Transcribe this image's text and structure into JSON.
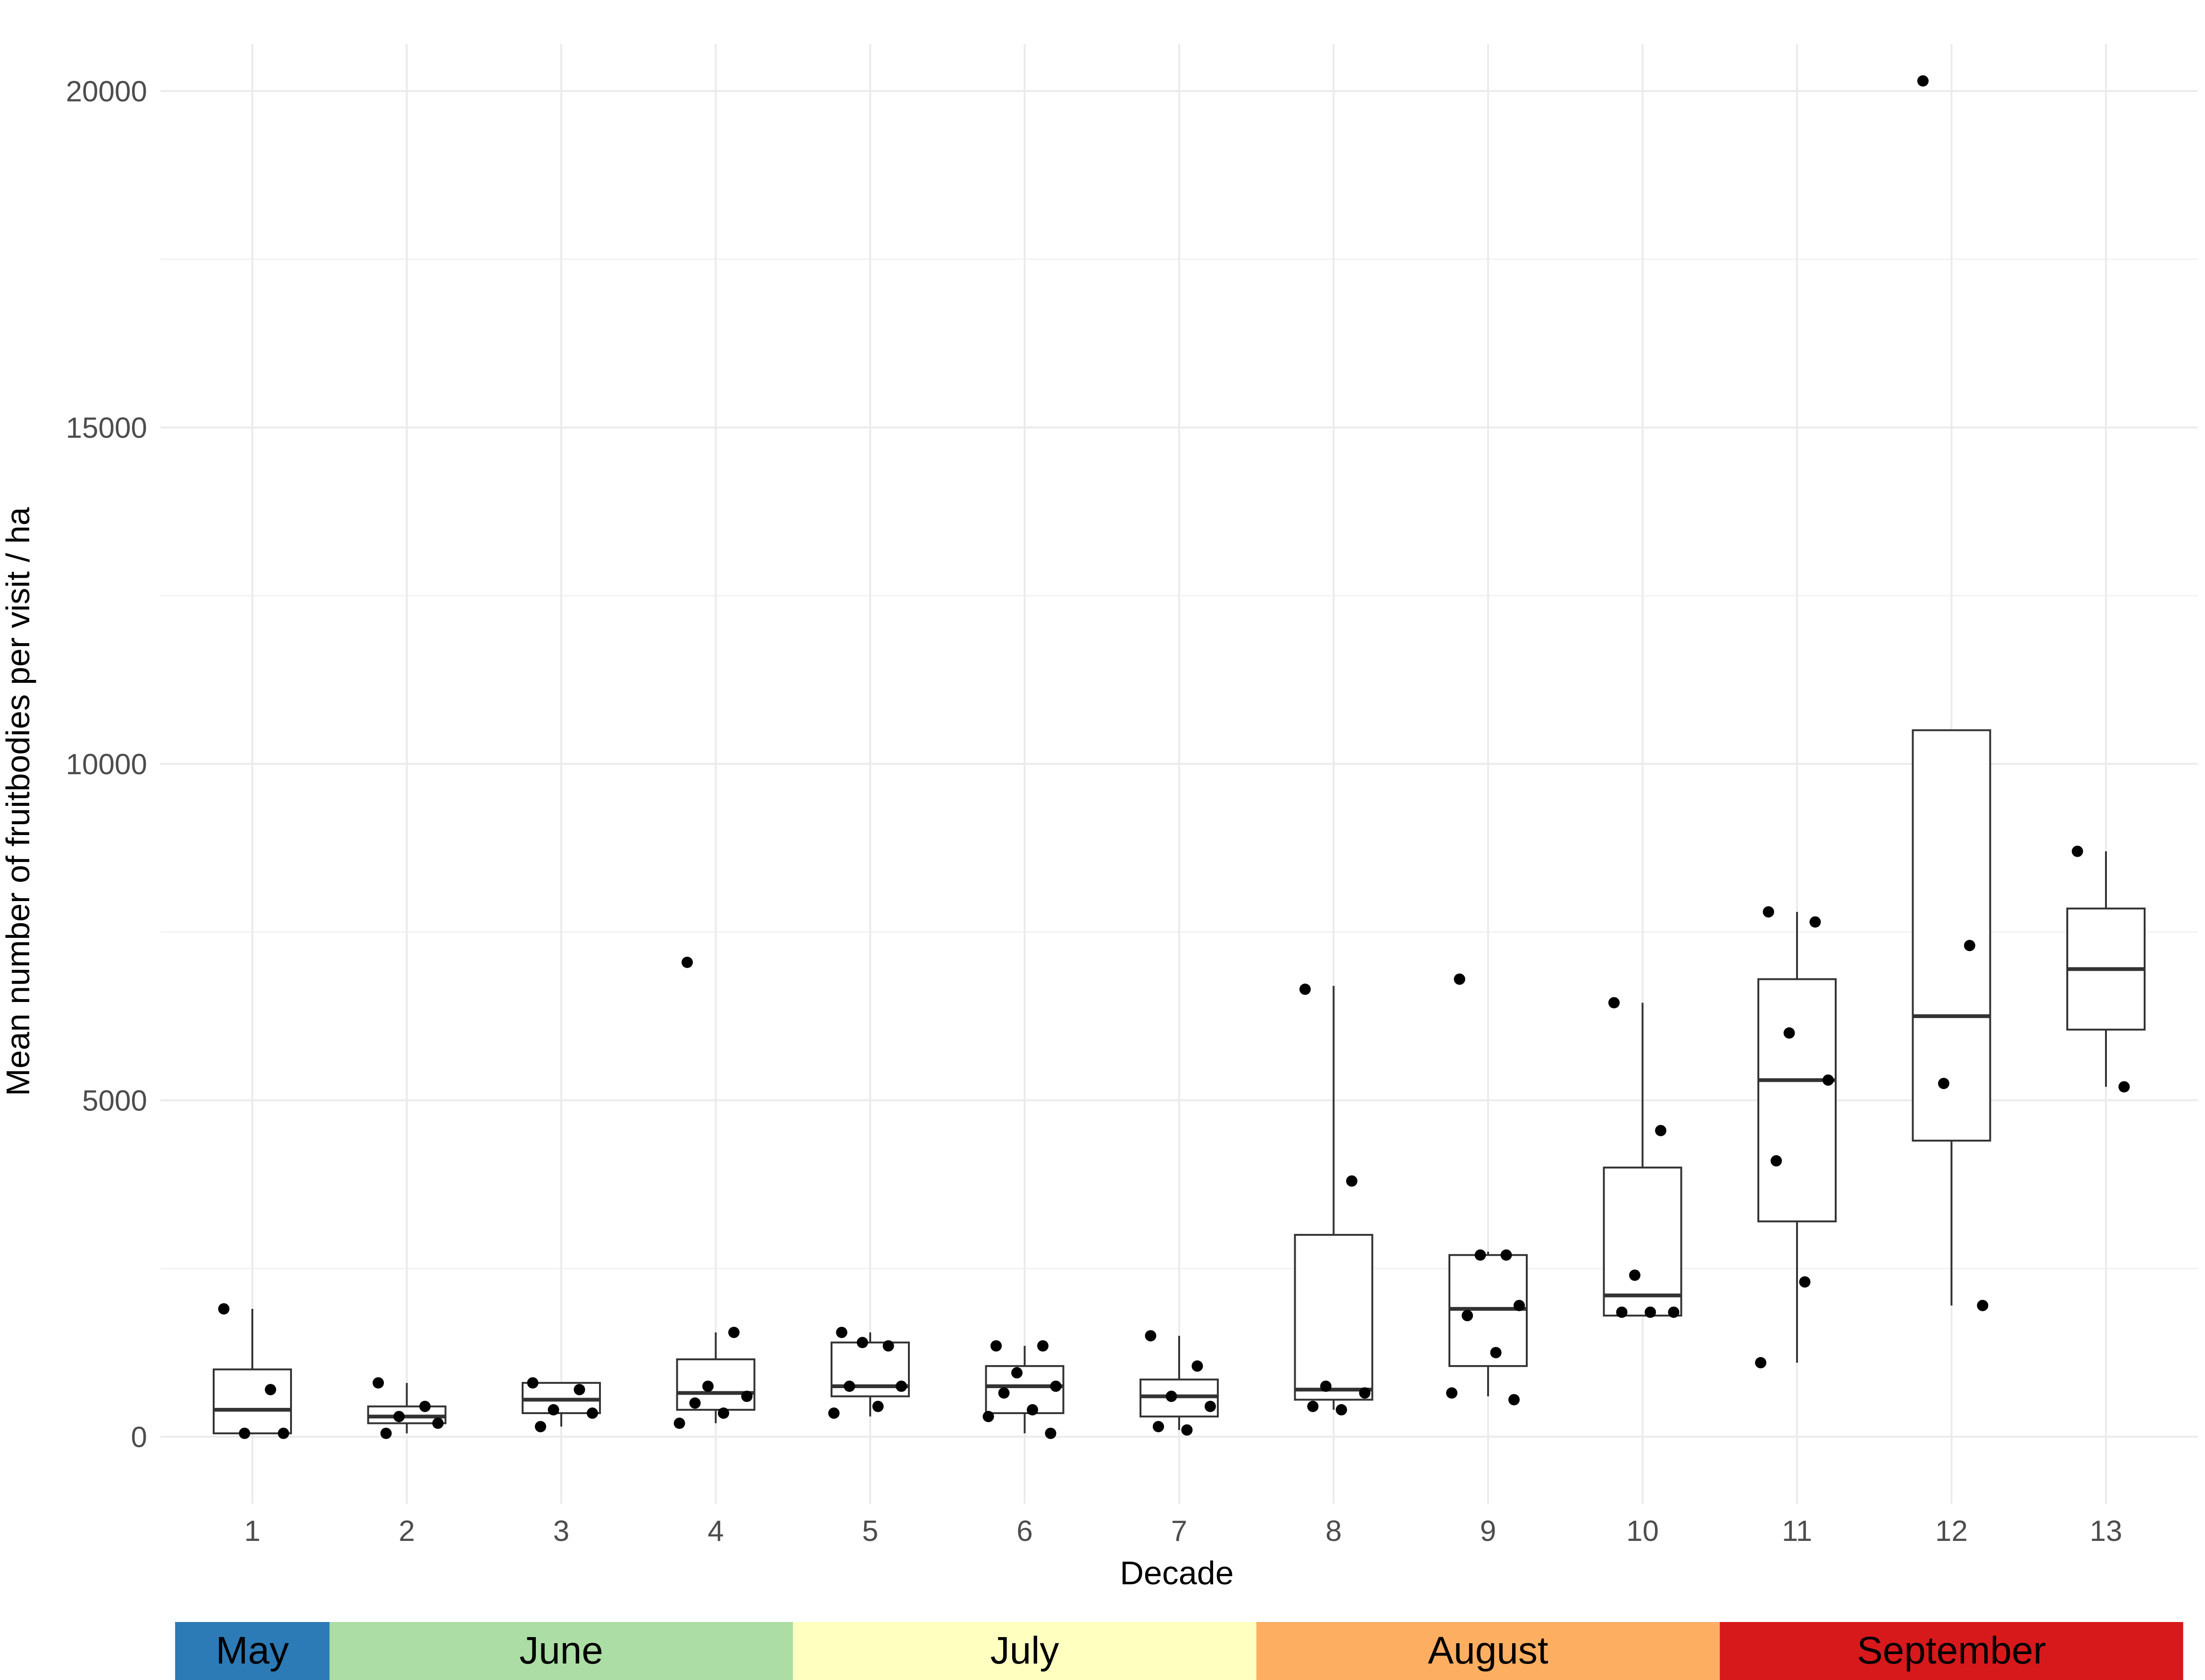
{
  "chart_data": {
    "type": "box",
    "xlabel": "Decade",
    "ylabel": "Mean number of fruitbodies per visit / ha",
    "ylim": [
      -1000,
      20700
    ],
    "yticks": [
      0,
      5000,
      10000,
      15000,
      20000
    ],
    "categories": [
      "1",
      "2",
      "3",
      "4",
      "5",
      "6",
      "7",
      "8",
      "9",
      "10",
      "11",
      "12",
      "13"
    ],
    "grid": true,
    "boxes": [
      {
        "decade": "1",
        "q1": 50,
        "median": 400,
        "q3": 1000,
        "whisker_low": 50,
        "whisker_high": 1900
      },
      {
        "decade": "2",
        "q1": 200,
        "median": 300,
        "q3": 450,
        "whisker_low": 50,
        "whisker_high": 800
      },
      {
        "decade": "3",
        "q1": 350,
        "median": 550,
        "q3": 800,
        "whisker_low": 150,
        "whisker_high": 800
      },
      {
        "decade": "4",
        "q1": 400,
        "median": 650,
        "q3": 1150,
        "whisker_low": 200,
        "whisker_high": 1550
      },
      {
        "decade": "5",
        "q1": 600,
        "median": 750,
        "q3": 1400,
        "whisker_low": 300,
        "whisker_high": 1550
      },
      {
        "decade": "6",
        "q1": 350,
        "median": 750,
        "q3": 1050,
        "whisker_low": 50,
        "whisker_high": 1350
      },
      {
        "decade": "7",
        "q1": 300,
        "median": 600,
        "q3": 850,
        "whisker_low": 100,
        "whisker_high": 1500
      },
      {
        "decade": "8",
        "q1": 550,
        "median": 700,
        "q3": 3000,
        "whisker_low": 400,
        "whisker_high": 6700
      },
      {
        "decade": "9",
        "q1": 1050,
        "median": 1900,
        "q3": 2700,
        "whisker_low": 600,
        "whisker_high": 2750
      },
      {
        "decade": "10",
        "q1": 1800,
        "median": 2100,
        "q3": 4000,
        "whisker_low": 1800,
        "whisker_high": 6450
      },
      {
        "decade": "11",
        "q1": 3200,
        "median": 5300,
        "q3": 6800,
        "whisker_low": 1100,
        "whisker_high": 7800
      },
      {
        "decade": "12",
        "q1": 4400,
        "median": 6250,
        "q3": 10500,
        "whisker_low": 1950,
        "whisker_high": 10500
      },
      {
        "decade": "13",
        "q1": 6050,
        "median": 6950,
        "q3": 7850,
        "whisker_low": 5200,
        "whisker_high": 8700
      }
    ],
    "points": [
      {
        "decade": "1",
        "values": [
          1900,
          700,
          50,
          50
        ]
      },
      {
        "decade": "2",
        "values": [
          800,
          450,
          300,
          200,
          50
        ]
      },
      {
        "decade": "3",
        "values": [
          800,
          700,
          400,
          350,
          150
        ]
      },
      {
        "decade": "4",
        "values": [
          7050,
          1550,
          750,
          600,
          500,
          350,
          200
        ]
      },
      {
        "decade": "5",
        "values": [
          1550,
          1350,
          1400,
          750,
          750,
          450,
          350
        ]
      },
      {
        "decade": "6",
        "values": [
          1350,
          1350,
          950,
          750,
          650,
          400,
          300,
          50
        ]
      },
      {
        "decade": "7",
        "values": [
          1500,
          1050,
          600,
          450,
          150,
          100
        ]
      },
      {
        "decade": "8",
        "values": [
          6650,
          3800,
          750,
          650,
          450,
          400
        ]
      },
      {
        "decade": "9",
        "values": [
          6800,
          2700,
          2700,
          1950,
          1800,
          1250,
          650,
          550
        ]
      },
      {
        "decade": "10",
        "values": [
          6450,
          4550,
          2400,
          1850,
          1850,
          1850
        ]
      },
      {
        "decade": "11",
        "values": [
          7800,
          7650,
          6000,
          5300,
          4100,
          2300,
          1100
        ]
      },
      {
        "decade": "12",
        "values": [
          20150,
          7300,
          5250,
          1950
        ]
      },
      {
        "decade": "13",
        "values": [
          8700,
          5200
        ]
      }
    ],
    "months": [
      {
        "label": "May",
        "color": "#2c7bb6",
        "start_decade": 0.5,
        "end_decade": 1.5
      },
      {
        "label": "June",
        "color": "#abdda4",
        "start_decade": 1.5,
        "end_decade": 4.5
      },
      {
        "label": "July",
        "color": "#ffffbf",
        "start_decade": 4.5,
        "end_decade": 7.5
      },
      {
        "label": "August",
        "color": "#fdae61",
        "start_decade": 7.5,
        "end_decade": 10.5
      },
      {
        "label": "September",
        "color": "#d7191c",
        "start_decade": 10.5,
        "end_decade": 13.5
      }
    ]
  }
}
